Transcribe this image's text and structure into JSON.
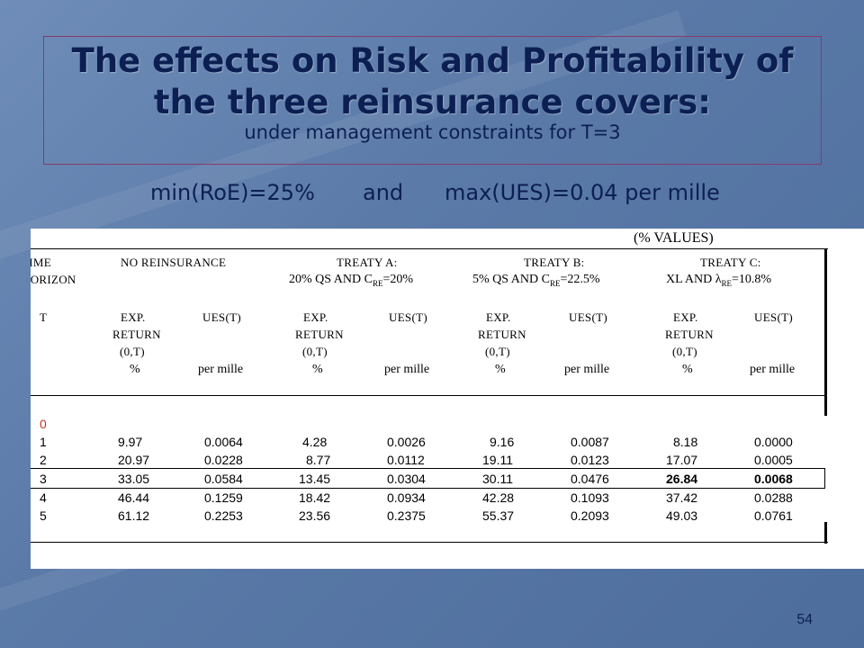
{
  "slide": {
    "title": "The effects on Risk and Profitability of the three reinsurance covers:",
    "subtitle": "under management constraints for T=3",
    "constraint_1": "min(RoE)=25%",
    "constraint_and": "and",
    "constraint_2": "max(UES)=0.04 per mille",
    "page_number": "54"
  },
  "table": {
    "note": "(% VALUES)",
    "time_horizon_1": "TIME",
    "time_horizon_2": "HORIZON",
    "groups": {
      "none": "NO REINSURANCE",
      "a": "TREATY A:",
      "a_detail": "20% QS AND C",
      "a_sub": "RE",
      "a_tail": "=20%",
      "b": "TREATY B:",
      "b_detail": "5% QS AND C",
      "b_sub": "RE",
      "b_tail": "=22.5%",
      "c": "TREATY C:",
      "c_detail": "XL AND λ",
      "c_sub": "RE",
      "c_tail": "=10.8%"
    },
    "col_T": "T",
    "exp_1": "EXP.",
    "exp_2": "RETURN",
    "exp_3": "(0,T)",
    "exp_unit": "%",
    "ues": "UES(T)",
    "ues_unit": "per mille",
    "rows": [
      {
        "t": "0",
        "v": [
          "",
          "",
          "",
          "",
          "",
          "",
          "",
          ""
        ]
      },
      {
        "t": "1",
        "v": [
          "9.97",
          "0.0064",
          "4.28",
          "0.0026",
          "9.16",
          "0.0087",
          "8.18",
          "0.0000"
        ]
      },
      {
        "t": "2",
        "v": [
          "20.97",
          "0.0228",
          "8.77",
          "0.0112",
          "19.11",
          "0.0123",
          "17.07",
          "0.0005"
        ]
      },
      {
        "t": "3",
        "v": [
          "33.05",
          "0.0584",
          "13.45",
          "0.0304",
          "30.11",
          "0.0476",
          "26.84",
          "0.0068"
        ]
      },
      {
        "t": "4",
        "v": [
          "46.44",
          "0.1259",
          "18.42",
          "0.0934",
          "42.28",
          "0.1093",
          "37.42",
          "0.0288"
        ]
      },
      {
        "t": "5",
        "v": [
          "61.12",
          "0.2253",
          "23.56",
          "0.2375",
          "55.37",
          "0.2093",
          "49.03",
          "0.0761"
        ]
      }
    ]
  }
}
